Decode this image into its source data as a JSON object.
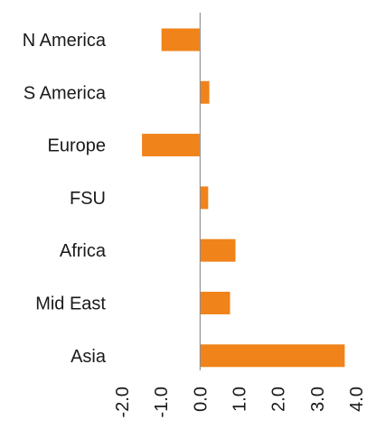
{
  "chart_data": {
    "type": "bar",
    "orientation": "horizontal",
    "categories": [
      "N America",
      "S America",
      "Europe",
      "FSU",
      "Africa",
      "Mid East",
      "Asia"
    ],
    "values": [
      -1.0,
      0.25,
      -1.5,
      0.22,
      0.92,
      0.78,
      3.72
    ],
    "xlim": [
      -2.0,
      4.0
    ],
    "xticks": [
      -2.0,
      -1.0,
      0.0,
      1.0,
      2.0,
      3.0,
      4.0
    ],
    "xtick_labels": [
      "-2.0",
      "-1.0",
      "0.0",
      "1.0",
      "2.0",
      "3.0",
      "4.0"
    ],
    "title": "",
    "xlabel": "",
    "ylabel": "",
    "grid": false,
    "legend": "none",
    "bar_color": "#F08319",
    "bar_edge_color": "#ffffff"
  }
}
